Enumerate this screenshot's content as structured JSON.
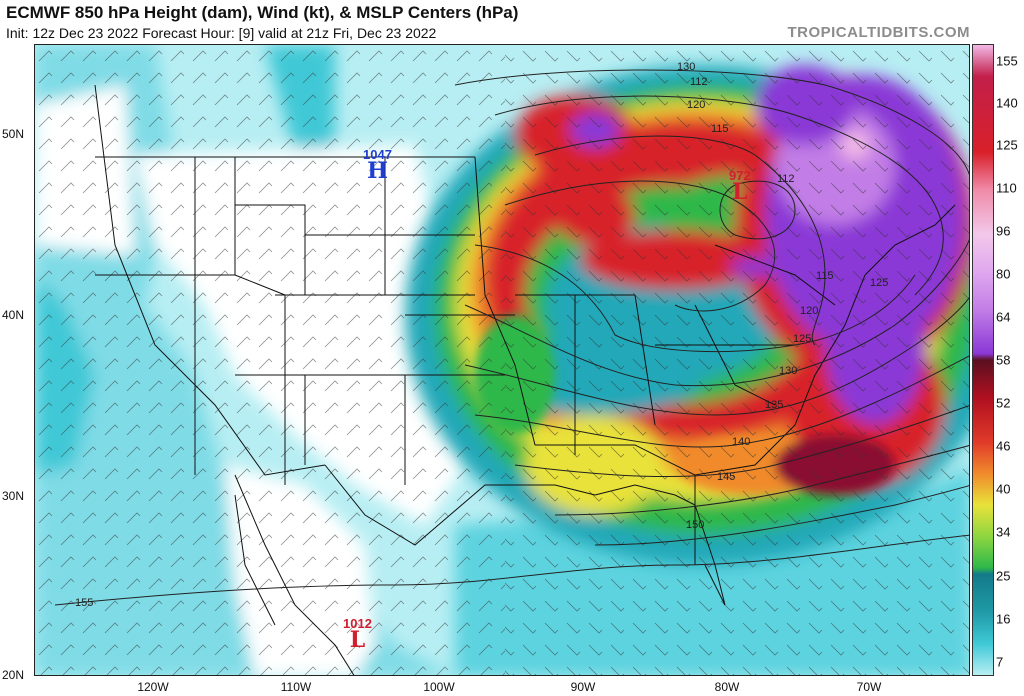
{
  "header": {
    "title": "ECMWF 850 hPa Height (dam), Wind (kt), & MSLP Centers (hPa)",
    "subtitle": "Init: 12z Dec 23 2022   Forecast Hour: [9]   valid at 21z Fri, Dec 23 2022",
    "brand": "TROPICALTIDBITS.COM"
  },
  "axes": {
    "lat_labels": [
      "50N",
      "40N",
      "30N",
      "20N"
    ],
    "lon_labels": [
      "120W",
      "110W",
      "100W",
      "90W",
      "80W",
      "70W"
    ]
  },
  "pressure_centers": [
    {
      "symbol": "H",
      "value": "1047",
      "color": "#1f3fd0"
    },
    {
      "symbol": "L",
      "value": "972",
      "color": "#d01f2f"
    },
    {
      "symbol": "L",
      "value": "1012",
      "color": "#d01f2f"
    }
  ],
  "contour_labels": [
    "130",
    "120",
    "115",
    "115",
    "120",
    "125",
    "130",
    "135",
    "140",
    "145",
    "150",
    "155",
    "112",
    "112",
    "125"
  ],
  "colorbar": {
    "labels": [
      "155",
      "140",
      "125",
      "110",
      "96",
      "80",
      "64",
      "58",
      "52",
      "46",
      "40",
      "34",
      "25",
      "16",
      "7"
    ],
    "colors": {
      "cyan_light": "#9ee9f0",
      "cyan": "#3fc8d6",
      "teal": "#1f9aa6",
      "green": "#2db84a",
      "yellow": "#e8e23a",
      "orange": "#f08a2c",
      "red": "#d8202a",
      "dark_red": "#8a1030",
      "purple": "#8a38d6",
      "violet": "#c27ee6",
      "pink": "#f2b8e6"
    }
  }
}
